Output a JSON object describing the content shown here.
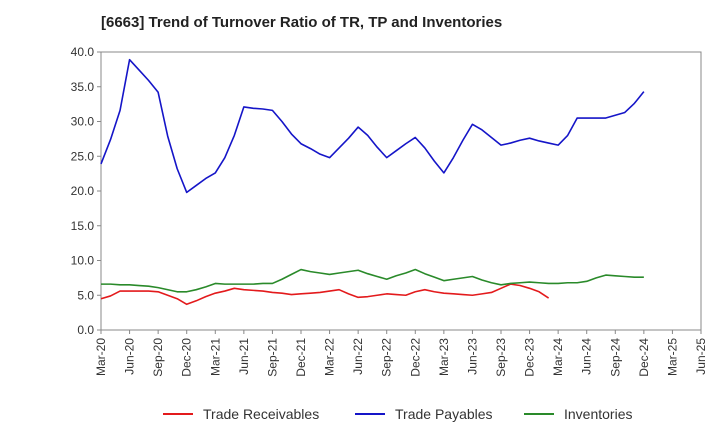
{
  "chart_data": {
    "type": "line",
    "title": "[6663]  Trend of Turnover Ratio of TR, TP and Inventories",
    "xlabel": "",
    "ylabel": "",
    "x_ticks": [
      "Mar-20",
      "Jun-20",
      "Sep-20",
      "Dec-20",
      "Mar-21",
      "Jun-21",
      "Sep-21",
      "Dec-21",
      "Mar-22",
      "Jun-22",
      "Sep-22",
      "Dec-22",
      "Mar-23",
      "Jun-23",
      "Sep-23",
      "Dec-23",
      "Mar-24",
      "Jun-24",
      "Sep-24",
      "Dec-24",
      "Mar-25",
      "Jun-25"
    ],
    "y_ticks": [
      "0.0",
      "5.0",
      "10.0",
      "15.0",
      "20.0",
      "25.0",
      "30.0",
      "35.0",
      "40.0"
    ],
    "ylim": [
      0,
      40
    ],
    "grid": false,
    "legend_position": "bottom",
    "series": [
      {
        "name": "Trade Receivables",
        "color": "#e31a1c",
        "points": [
          [
            0,
            4.5
          ],
          [
            1,
            4.9
          ],
          [
            2,
            5.6
          ],
          [
            3,
            5.6
          ],
          [
            4,
            5.6
          ],
          [
            5,
            5.6
          ],
          [
            6,
            5.5
          ],
          [
            8,
            4.5
          ],
          [
            9,
            3.7
          ],
          [
            10,
            4.2
          ],
          [
            11,
            4.8
          ],
          [
            12,
            5.3
          ],
          [
            13,
            5.6
          ],
          [
            14,
            6.0
          ],
          [
            15,
            5.8
          ],
          [
            16,
            5.7
          ],
          [
            17,
            5.6
          ],
          [
            18,
            5.4
          ],
          [
            19,
            5.3
          ],
          [
            20,
            5.1
          ],
          [
            21,
            5.2
          ],
          [
            22,
            5.3
          ],
          [
            23,
            5.4
          ],
          [
            24,
            5.6
          ],
          [
            25,
            5.8
          ],
          [
            26,
            5.2
          ],
          [
            27,
            4.7
          ],
          [
            28,
            4.8
          ],
          [
            29,
            5.0
          ],
          [
            30,
            5.2
          ],
          [
            31,
            5.1
          ],
          [
            32,
            5.0
          ],
          [
            33,
            5.5
          ],
          [
            34,
            5.8
          ],
          [
            35,
            5.5
          ],
          [
            36,
            5.3
          ],
          [
            37,
            5.2
          ],
          [
            38,
            5.1
          ],
          [
            39,
            5.0
          ],
          [
            40,
            5.2
          ],
          [
            41,
            5.4
          ],
          [
            42,
            6.0
          ],
          [
            43,
            6.6
          ],
          [
            44,
            6.4
          ],
          [
            45,
            6.0
          ],
          [
            46,
            5.5
          ],
          [
            47,
            4.6
          ]
        ]
      },
      {
        "name": "Trade Payables",
        "color": "#1515c8",
        "points": [
          [
            0,
            23.9
          ],
          [
            1,
            27.4
          ],
          [
            2,
            31.6
          ],
          [
            3,
            38.9
          ],
          [
            4,
            37.4
          ],
          [
            5,
            35.9
          ],
          [
            6,
            34.2
          ],
          [
            7,
            27.9
          ],
          [
            8,
            23.2
          ],
          [
            9,
            19.8
          ],
          [
            10,
            20.8
          ],
          [
            11,
            21.8
          ],
          [
            12,
            22.6
          ],
          [
            13,
            24.8
          ],
          [
            14,
            28.0
          ],
          [
            15,
            32.1
          ],
          [
            16,
            31.9
          ],
          [
            17,
            31.8
          ],
          [
            18,
            31.6
          ],
          [
            19,
            30.0
          ],
          [
            20,
            28.2
          ],
          [
            21,
            26.8
          ],
          [
            22,
            26.1
          ],
          [
            23,
            25.3
          ],
          [
            24,
            24.8
          ],
          [
            25,
            26.2
          ],
          [
            26,
            27.6
          ],
          [
            27,
            29.2
          ],
          [
            28,
            28.0
          ],
          [
            29,
            26.3
          ],
          [
            30,
            24.8
          ],
          [
            31,
            25.8
          ],
          [
            32,
            26.8
          ],
          [
            33,
            27.7
          ],
          [
            34,
            26.2
          ],
          [
            35,
            24.3
          ],
          [
            36,
            22.6
          ],
          [
            37,
            24.8
          ],
          [
            38,
            27.3
          ],
          [
            39,
            29.6
          ],
          [
            40,
            28.8
          ],
          [
            41,
            27.7
          ],
          [
            42,
            26.6
          ],
          [
            43,
            26.9
          ],
          [
            44,
            27.3
          ],
          [
            45,
            27.6
          ],
          [
            46,
            27.2
          ],
          [
            47,
            26.9
          ],
          [
            48,
            26.6
          ],
          [
            49,
            28.0
          ],
          [
            50,
            30.5
          ],
          [
            51,
            30.5
          ],
          [
            52,
            30.5
          ],
          [
            53,
            30.5
          ],
          [
            54,
            30.9
          ],
          [
            55,
            31.3
          ],
          [
            56,
            32.6
          ],
          [
            57,
            34.3
          ]
        ]
      },
      {
        "name": "Inventories",
        "color": "#2a8a2a",
        "points": [
          [
            0,
            6.6
          ],
          [
            1,
            6.6
          ],
          [
            2,
            6.5
          ],
          [
            3,
            6.5
          ],
          [
            4,
            6.4
          ],
          [
            5,
            6.3
          ],
          [
            6,
            6.1
          ],
          [
            8,
            5.5
          ],
          [
            9,
            5.5
          ],
          [
            10,
            5.8
          ],
          [
            11,
            6.2
          ],
          [
            12,
            6.7
          ],
          [
            13,
            6.6
          ],
          [
            14,
            6.6
          ],
          [
            15,
            6.6
          ],
          [
            16,
            6.6
          ],
          [
            17,
            6.7
          ],
          [
            18,
            6.7
          ],
          [
            19,
            7.3
          ],
          [
            20,
            8.0
          ],
          [
            21,
            8.7
          ],
          [
            22,
            8.4
          ],
          [
            23,
            8.2
          ],
          [
            24,
            8.0
          ],
          [
            25,
            8.2
          ],
          [
            26,
            8.4
          ],
          [
            27,
            8.6
          ],
          [
            28,
            8.1
          ],
          [
            29,
            7.7
          ],
          [
            30,
            7.3
          ],
          [
            31,
            7.8
          ],
          [
            32,
            8.2
          ],
          [
            33,
            8.7
          ],
          [
            34,
            8.1
          ],
          [
            35,
            7.6
          ],
          [
            36,
            7.1
          ],
          [
            37,
            7.3
          ],
          [
            38,
            7.5
          ],
          [
            39,
            7.7
          ],
          [
            40,
            7.2
          ],
          [
            41,
            6.8
          ],
          [
            42,
            6.5
          ],
          [
            43,
            6.7
          ],
          [
            44,
            6.8
          ],
          [
            45,
            6.9
          ],
          [
            46,
            6.8
          ],
          [
            47,
            6.7
          ],
          [
            48,
            6.7
          ],
          [
            49,
            6.8
          ],
          [
            50,
            6.8
          ],
          [
            51,
            7.0
          ],
          [
            52,
            7.5
          ],
          [
            53,
            7.9
          ],
          [
            54,
            7.8
          ],
          [
            55,
            7.7
          ],
          [
            56,
            7.6
          ],
          [
            57,
            7.6
          ]
        ]
      }
    ],
    "legend": [
      {
        "name": "Trade Receivables",
        "color": "#e31a1c"
      },
      {
        "name": "Trade Payables",
        "color": "#1515c8"
      },
      {
        "name": "Inventories",
        "color": "#2a8a2a"
      }
    ]
  }
}
